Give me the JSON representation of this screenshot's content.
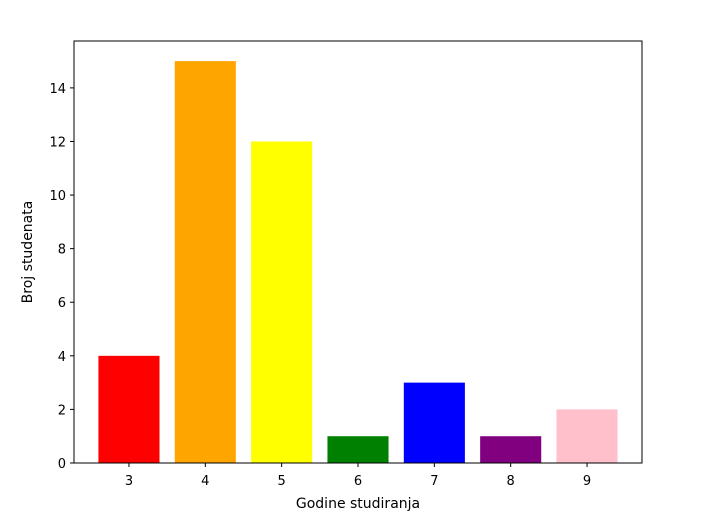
{
  "chart_data": {
    "type": "bar",
    "title": "",
    "xlabel": "Godine studiranja",
    "ylabel": "Broj studenata",
    "categories": [
      "3",
      "4",
      "5",
      "6",
      "7",
      "8",
      "9"
    ],
    "values": [
      4,
      15,
      12,
      1,
      3,
      1,
      2
    ],
    "colors": [
      "#ff0000",
      "#ffa500",
      "#ffff00",
      "#008000",
      "#0000ff",
      "#800080",
      "#ffc0cb"
    ],
    "ylim": [
      0,
      15.75
    ],
    "yticks": [
      0,
      2,
      4,
      6,
      8,
      10,
      12,
      14
    ],
    "grid": false,
    "legend": "none"
  }
}
